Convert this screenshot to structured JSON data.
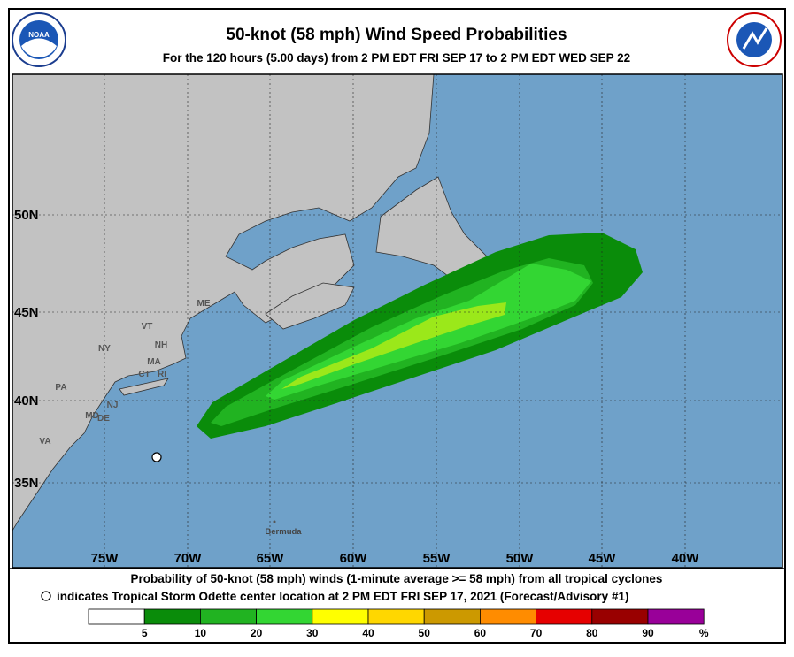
{
  "header": {
    "title": "50-knot (58 mph) Wind Speed Probabilities",
    "subtitle": "For the 120 hours (5.00 days) from 2 PM EDT FRI SEP 17 to 2 PM EDT WED SEP 22"
  },
  "map": {
    "lat_labels": [
      "50N",
      "45N",
      "40N",
      "35N"
    ],
    "lon_labels": [
      "75W",
      "70W",
      "65W",
      "60W",
      "55W",
      "50W",
      "45W",
      "40W"
    ],
    "state_labels": [
      "ME",
      "VT",
      "NH",
      "NY",
      "MA",
      "CT",
      "RI",
      "PA",
      "NJ",
      "DE",
      "MD",
      "VA"
    ],
    "place_label": "Bermuda"
  },
  "footer": {
    "line1": "Probability of 50-knot (58 mph) winds (1-minute average >= 58 mph) from all tropical cyclones",
    "line2": "indicates Tropical Storm Odette center location at 2 PM EDT FRI SEP 17, 2021 (Forecast/Advisory #1)"
  },
  "legend": {
    "colors": [
      "#ffffff",
      "#0a8c0a",
      "#21b321",
      "#33d633",
      "#ffff00",
      "#ffd700",
      "#cc9900",
      "#ff8c00",
      "#e60000",
      "#990000",
      "#990099"
    ],
    "labels": [
      "5",
      "10",
      "20",
      "30",
      "40",
      "50",
      "60",
      "70",
      "80",
      "90",
      "%"
    ]
  }
}
